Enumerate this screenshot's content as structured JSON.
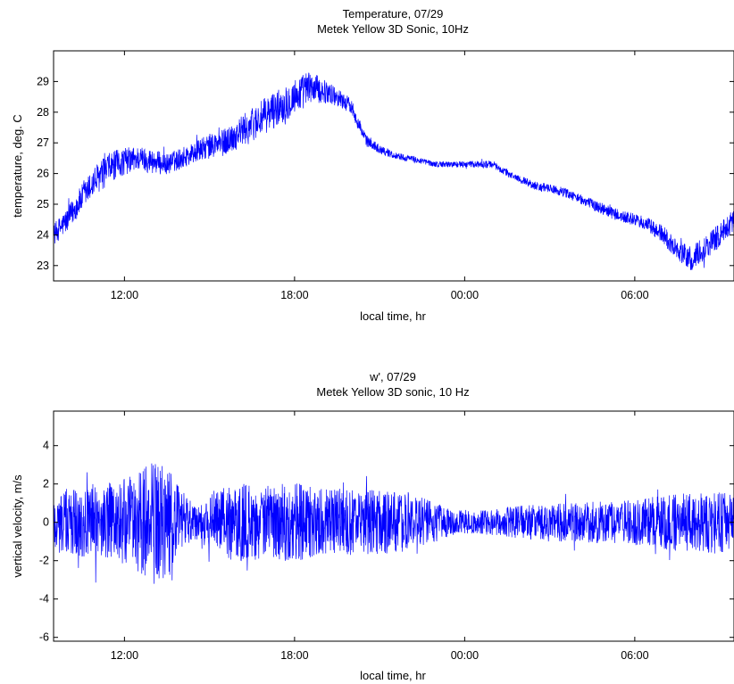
{
  "chart_data": [
    {
      "type": "line",
      "title": "Temperature, 07/29",
      "subtitle": "Metek Yellow 3D Sonic, 10Hz",
      "xlabel": "local time, hr",
      "ylabel": "temperature, deg. C",
      "xlim": [
        9.5,
        33.5
      ],
      "ylim": [
        22.5,
        30
      ],
      "xticks": [
        {
          "value": 12,
          "label": "12:00"
        },
        {
          "value": 18,
          "label": "18:00"
        },
        {
          "value": 24,
          "label": "00:00"
        },
        {
          "value": 30,
          "label": "06:00"
        }
      ],
      "yticks": [
        {
          "value": 23,
          "label": "23"
        },
        {
          "value": 24,
          "label": "24"
        },
        {
          "value": 25,
          "label": "25"
        },
        {
          "value": 26,
          "label": "26"
        },
        {
          "value": 27,
          "label": "27"
        },
        {
          "value": 28,
          "label": "28"
        },
        {
          "value": 29,
          "label": "29"
        }
      ],
      "grid": false,
      "legend": "none",
      "color": "#0000ff",
      "series": [
        {
          "x": [
            9.5,
            10.0,
            10.5,
            11.0,
            11.5,
            12.0,
            12.5,
            13.0,
            13.5,
            14.0,
            14.5,
            15.0,
            15.5,
            16.0,
            16.5,
            17.0,
            17.5,
            18.0,
            18.5,
            19.0,
            19.5,
            20.0,
            20.5,
            21.0,
            21.5,
            22.0,
            22.5,
            23.0,
            23.5,
            24.0,
            24.5,
            25.0,
            25.5,
            26.0,
            26.5,
            27.0,
            27.5,
            28.0,
            28.5,
            29.0,
            29.5,
            30.0,
            30.5,
            31.0,
            31.5,
            32.0,
            32.5,
            33.0,
            33.5
          ],
          "mean": [
            24.0,
            24.5,
            25.2,
            25.8,
            26.2,
            26.4,
            26.5,
            26.4,
            26.3,
            26.5,
            26.7,
            26.9,
            27.0,
            27.3,
            27.6,
            27.9,
            28.2,
            28.5,
            28.8,
            28.7,
            28.5,
            28.2,
            27.1,
            26.8,
            26.6,
            26.5,
            26.4,
            26.3,
            26.3,
            26.3,
            26.3,
            26.3,
            26.0,
            25.8,
            25.6,
            25.5,
            25.4,
            25.2,
            25.0,
            24.8,
            24.6,
            24.5,
            24.3,
            24.0,
            23.5,
            23.2,
            23.6,
            24.0,
            24.5
          ],
          "spread": [
            0.35,
            0.4,
            0.45,
            0.5,
            0.5,
            0.45,
            0.4,
            0.4,
            0.35,
            0.35,
            0.35,
            0.4,
            0.45,
            0.5,
            0.55,
            0.6,
            0.6,
            0.6,
            0.55,
            0.4,
            0.3,
            0.25,
            0.2,
            0.15,
            0.12,
            0.1,
            0.1,
            0.1,
            0.1,
            0.1,
            0.12,
            0.12,
            0.12,
            0.12,
            0.15,
            0.15,
            0.15,
            0.15,
            0.18,
            0.2,
            0.2,
            0.2,
            0.25,
            0.3,
            0.35,
            0.4,
            0.4,
            0.4,
            0.35
          ]
        }
      ]
    },
    {
      "type": "line",
      "title": "w', 07/29",
      "subtitle": "Metek Yellow 3D sonic, 10 Hz",
      "xlabel": "local time, hr",
      "ylabel": "vertical velocity, m/s",
      "xlim": [
        9.5,
        33.5
      ],
      "ylim": [
        -6.2,
        5.8
      ],
      "xticks": [
        {
          "value": 12,
          "label": "12:00"
        },
        {
          "value": 18,
          "label": "18:00"
        },
        {
          "value": 24,
          "label": "00:00"
        },
        {
          "value": 30,
          "label": "06:00"
        }
      ],
      "yticks": [
        {
          "value": -6,
          "label": "-6"
        },
        {
          "value": -4,
          "label": "-4"
        },
        {
          "value": -2,
          "label": "-2"
        },
        {
          "value": 0,
          "label": "0"
        },
        {
          "value": 2,
          "label": "2"
        },
        {
          "value": 4,
          "label": "4"
        }
      ],
      "grid": false,
      "legend": "none",
      "color": "#0000ff",
      "series": [
        {
          "x": [
            9.5,
            10.0,
            10.5,
            11.0,
            11.5,
            12.0,
            12.5,
            13.0,
            13.5,
            14.0,
            14.5,
            15.0,
            15.5,
            16.0,
            16.5,
            17.0,
            17.5,
            18.0,
            18.5,
            19.0,
            19.5,
            20.0,
            20.5,
            21.0,
            21.5,
            22.0,
            22.5,
            23.0,
            23.5,
            24.0,
            24.5,
            25.0,
            25.5,
            26.0,
            26.5,
            27.0,
            27.5,
            28.0,
            28.5,
            29.0,
            29.5,
            30.0,
            30.5,
            31.0,
            31.5,
            32.0,
            32.5,
            33.0,
            33.5
          ],
          "mean": [
            0,
            0,
            0,
            0,
            0,
            0,
            0,
            0,
            0,
            0,
            0,
            0,
            0,
            0,
            0,
            0,
            0,
            0,
            0,
            0,
            0,
            0,
            0,
            0,
            0,
            0,
            0,
            0,
            0,
            0,
            0,
            0,
            0,
            0,
            0,
            0,
            0,
            0,
            0,
            0,
            0,
            0,
            0,
            0,
            0,
            0,
            0,
            0,
            0
          ],
          "spread": [
            1.6,
            1.8,
            2.0,
            2.0,
            2.1,
            2.3,
            2.6,
            3.3,
            3.0,
            1.7,
            0.9,
            1.4,
            1.9,
            2.0,
            2.0,
            1.9,
            2.0,
            2.1,
            1.9,
            1.8,
            1.8,
            1.7,
            1.7,
            1.7,
            1.6,
            1.5,
            1.3,
            1.0,
            0.7,
            0.6,
            0.6,
            0.7,
            0.8,
            0.9,
            0.9,
            1.0,
            1.0,
            1.0,
            1.1,
            1.1,
            1.1,
            1.2,
            1.3,
            1.4,
            1.5,
            1.5,
            1.6,
            1.6,
            1.6
          ]
        }
      ]
    }
  ]
}
